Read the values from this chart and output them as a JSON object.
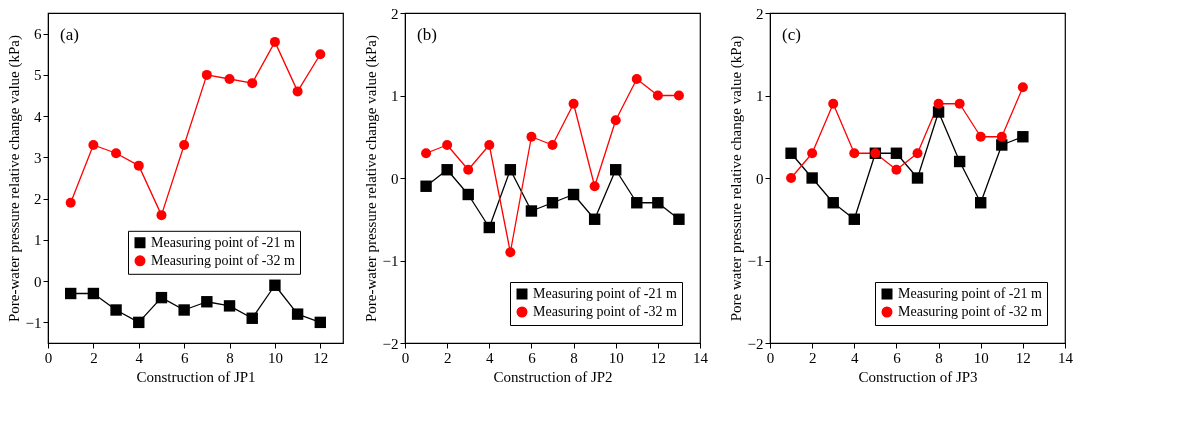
{
  "chart_data": [
    {
      "type": "line",
      "xlabel": "Construction of JP1",
      "ylabel": "Pore-water pressure relative change value (kPa)",
      "annotations": [
        "(a)"
      ],
      "x": [
        1,
        2,
        3,
        4,
        5,
        6,
        7,
        8,
        9,
        10,
        11,
        12
      ],
      "xlim": [
        0,
        13
      ],
      "xticks": [
        0,
        2,
        4,
        6,
        8,
        10,
        12
      ],
      "ylim": [
        -1.5,
        6.5
      ],
      "yticks": [
        -1,
        0,
        1,
        2,
        3,
        4,
        5,
        6
      ],
      "legend": "right",
      "grid": false,
      "line_style": "solid",
      "series": [
        {
          "name": "Measuring point of -21 m",
          "color": "#000000",
          "marker": "square",
          "values": [
            -0.3,
            -0.3,
            -0.7,
            -1.0,
            -0.4,
            -0.7,
            -0.5,
            -0.6,
            -0.9,
            -0.1,
            -0.8,
            -1.0
          ]
        },
        {
          "name": "Measuring point of -32 m",
          "color": "#ff0000",
          "marker": "circle",
          "values": [
            1.9,
            3.3,
            3.1,
            2.8,
            1.6,
            3.3,
            5.0,
            4.9,
            4.8,
            5.8,
            4.6,
            5.5
          ]
        }
      ]
    },
    {
      "type": "line",
      "xlabel": "Construction of JP2",
      "ylabel": "Pore-water pressure relative change value (kPa)",
      "annotations": [
        "(b)"
      ],
      "x": [
        1,
        2,
        3,
        4,
        5,
        6,
        7,
        8,
        9,
        10,
        11,
        12,
        13
      ],
      "xlim": [
        0,
        14
      ],
      "xticks": [
        0,
        2,
        4,
        6,
        8,
        10,
        12,
        14
      ],
      "ylim": [
        -2,
        2
      ],
      "yticks": [
        -2,
        -1,
        0,
        1,
        2
      ],
      "legend": "bottom right",
      "grid": false,
      "line_style": "solid",
      "series": [
        {
          "name": "Measuring point of -21 m",
          "color": "#000000",
          "marker": "square",
          "values": [
            -0.1,
            0.1,
            -0.2,
            -0.6,
            0.1,
            -0.4,
            -0.3,
            -0.2,
            -0.5,
            0.1,
            -0.3,
            -0.3,
            -0.5
          ]
        },
        {
          "name": "Measuring point of -32 m",
          "color": "#ff0000",
          "marker": "circle",
          "values": [
            0.3,
            0.4,
            0.1,
            0.4,
            -0.9,
            0.5,
            0.4,
            0.9,
            -0.1,
            0.7,
            1.2,
            1.0,
            1.0
          ]
        }
      ]
    },
    {
      "type": "line",
      "xlabel": "Construction of JP3",
      "ylabel": "Pore water pressure relative change value (kPa)",
      "annotations": [
        "(c)"
      ],
      "x": [
        1,
        2,
        3,
        4,
        5,
        6,
        7,
        8,
        9,
        10,
        11,
        12
      ],
      "xlim": [
        0,
        14
      ],
      "xticks": [
        0,
        2,
        4,
        6,
        8,
        10,
        12,
        14
      ],
      "ylim": [
        -2,
        2
      ],
      "yticks": [
        -2,
        -1,
        0,
        1,
        2
      ],
      "legend": "bottom right",
      "grid": false,
      "line_style": "solid",
      "series": [
        {
          "name": "Measuring point of -21 m",
          "color": "#000000",
          "marker": "square",
          "values": [
            0.3,
            0,
            -0.3,
            -0.5,
            0.3,
            0.3,
            0,
            0.8,
            0.2,
            -0.3,
            0.4,
            0.5
          ]
        },
        {
          "name": "Measuring point of -32 m",
          "color": "#ff0000",
          "marker": "circle",
          "values": [
            0,
            0.3,
            0.9,
            0.3,
            0.3,
            0.1,
            0.3,
            0.9,
            0.9,
            0.5,
            0.5,
            1.1
          ]
        }
      ]
    }
  ]
}
